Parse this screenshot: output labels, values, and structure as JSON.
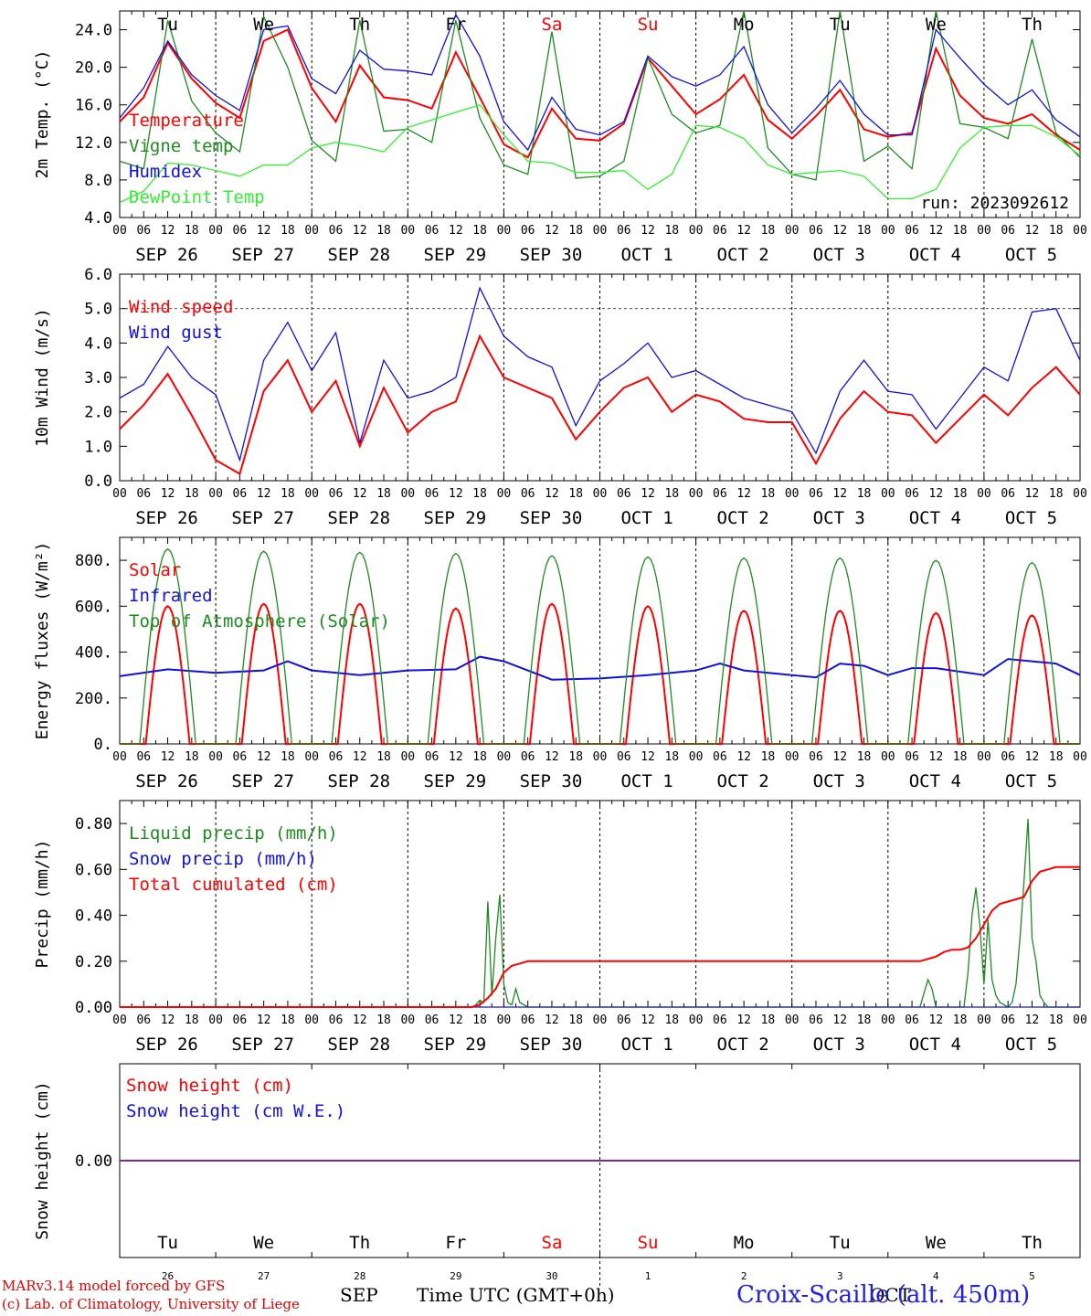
{
  "chart_data": [
    {
      "type": "line",
      "ylabel": "2m Temp. (°C)",
      "ylim": [
        4,
        26
      ],
      "yticks": [
        "4.0",
        "8.0",
        "12.0",
        "16.0",
        "20.0",
        "24.0"
      ],
      "run_label": "run: 2023092612",
      "day_names": [
        "Tu",
        "We",
        "Th",
        "Fr",
        "Sa",
        "Su",
        "Mo",
        "Tu",
        "We",
        "Th"
      ],
      "series": [
        {
          "name": "Temperature",
          "color": "#ff0000",
          "hours": [
            0,
            6,
            12,
            18,
            24,
            30,
            36,
            42,
            48,
            54,
            60,
            66,
            72,
            78,
            84,
            90,
            96,
            102,
            108,
            114,
            120,
            126,
            132,
            138,
            144,
            150,
            156,
            162,
            168,
            174,
            180,
            186,
            192,
            198,
            204,
            210,
            216,
            222,
            228,
            234,
            240
          ],
          "values": [
            14.2,
            16.8,
            22.6,
            18.8,
            16.2,
            14.6,
            22.8,
            24.0,
            17.8,
            14.2,
            20.2,
            16.8,
            16.5,
            15.6,
            21.6,
            16.8,
            11.8,
            10.4,
            15.6,
            12.4,
            12.2,
            14.0,
            21.0,
            18.0,
            15.0,
            16.6,
            19.2,
            14.4,
            12.4,
            14.8,
            17.6,
            13.4,
            12.6,
            13.0,
            22.0,
            17.0,
            14.6,
            14.0,
            15.0,
            12.8,
            11.2
          ]
        },
        {
          "name": "Vigne temp",
          "color": "#1e8a1e",
          "hours": [
            0,
            6,
            12,
            18,
            24,
            30,
            36,
            42,
            48,
            54,
            60,
            66,
            72,
            78,
            84,
            90,
            96,
            102,
            108,
            114,
            120,
            126,
            132,
            138,
            144,
            150,
            156,
            162,
            168,
            174,
            180,
            186,
            192,
            198,
            204,
            210,
            216,
            222,
            228,
            234,
            240
          ],
          "values": [
            10.0,
            9.2,
            25.0,
            16.4,
            13.0,
            11.0,
            25.4,
            20.0,
            12.2,
            10.0,
            25.0,
            13.2,
            13.4,
            12.0,
            25.0,
            14.6,
            9.6,
            8.6,
            23.8,
            8.2,
            8.4,
            10.0,
            21.0,
            15.0,
            13.0,
            13.8,
            26.0,
            11.4,
            8.6,
            8.0,
            26.0,
            10.0,
            11.6,
            9.2,
            26.0,
            14.0,
            13.6,
            12.4,
            23.0,
            13.0,
            10.4
          ]
        },
        {
          "name": "Humidex",
          "color": "#1010e0",
          "hours": [
            0,
            6,
            12,
            18,
            24,
            30,
            36,
            42,
            48,
            54,
            60,
            66,
            72,
            78,
            84,
            90,
            96,
            102,
            108,
            114,
            120,
            126,
            132,
            138,
            144,
            150,
            156,
            162,
            168,
            174,
            180,
            186,
            192,
            198,
            204,
            210,
            216,
            222,
            228,
            234,
            240
          ],
          "values": [
            14.6,
            17.8,
            22.8,
            19.2,
            17.0,
            15.4,
            24.0,
            24.4,
            18.8,
            17.2,
            21.8,
            19.8,
            19.6,
            19.2,
            25.6,
            21.2,
            14.2,
            11.2,
            16.8,
            13.4,
            12.8,
            14.2,
            21.2,
            19.0,
            18.0,
            19.2,
            22.2,
            16.0,
            13.0,
            15.6,
            18.6,
            15.0,
            12.8,
            12.8,
            24.0,
            21.0,
            18.2,
            16.0,
            17.6,
            14.4,
            12.6
          ]
        },
        {
          "name": "DewPoint Temp",
          "color": "#33ee33",
          "hours": [
            0,
            6,
            12,
            18,
            24,
            30,
            36,
            42,
            48,
            54,
            60,
            66,
            72,
            78,
            84,
            90,
            96,
            102,
            108,
            114,
            120,
            126,
            132,
            138,
            144,
            150,
            156,
            162,
            168,
            174,
            180,
            186,
            192,
            198,
            204,
            210,
            216,
            222,
            228,
            234,
            240
          ],
          "values": [
            5.6,
            6.8,
            9.8,
            9.6,
            9.0,
            8.4,
            9.6,
            9.6,
            11.4,
            12.0,
            11.6,
            11.0,
            13.6,
            14.4,
            15.2,
            16.0,
            12.8,
            10.0,
            9.8,
            8.8,
            8.8,
            9.0,
            7.0,
            8.6,
            13.8,
            13.6,
            12.4,
            9.6,
            8.6,
            8.8,
            9.0,
            8.4,
            6.0,
            6.0,
            7.0,
            11.4,
            13.6,
            13.8,
            13.8,
            12.6,
            10.6
          ]
        }
      ]
    },
    {
      "type": "line",
      "ylabel": "10m Wind (m/s)",
      "ylim": [
        0,
        6
      ],
      "yticks": [
        "0.0",
        "1.0",
        "2.0",
        "3.0",
        "4.0",
        "5.0",
        "6.0"
      ],
      "series": [
        {
          "name": "Wind speed",
          "color": "#ff0000",
          "hours": [
            0,
            6,
            12,
            18,
            24,
            30,
            36,
            42,
            48,
            54,
            60,
            66,
            72,
            78,
            84,
            90,
            96,
            102,
            108,
            114,
            120,
            126,
            132,
            138,
            144,
            150,
            156,
            162,
            168,
            174,
            180,
            186,
            192,
            198,
            204,
            210,
            216,
            222,
            228,
            234,
            240
          ],
          "values": [
            1.5,
            2.2,
            3.1,
            1.9,
            0.6,
            0.2,
            2.6,
            3.5,
            2.0,
            2.9,
            1.0,
            2.7,
            1.4,
            2.0,
            2.3,
            4.2,
            3.0,
            2.7,
            2.4,
            1.2,
            2.0,
            2.7,
            3.0,
            2.0,
            2.5,
            2.3,
            1.8,
            1.7,
            1.7,
            0.5,
            1.8,
            2.6,
            2.0,
            1.9,
            1.1,
            1.8,
            2.5,
            1.9,
            2.7,
            3.3,
            2.5
          ]
        },
        {
          "name": "Wind gust",
          "color": "#1010e0",
          "hours": [
            0,
            6,
            12,
            18,
            24,
            30,
            36,
            42,
            48,
            54,
            60,
            66,
            72,
            78,
            84,
            90,
            96,
            102,
            108,
            114,
            120,
            126,
            132,
            138,
            144,
            150,
            156,
            162,
            168,
            174,
            180,
            186,
            192,
            198,
            204,
            210,
            216,
            222,
            228,
            234,
            240
          ],
          "values": [
            2.4,
            2.8,
            3.9,
            3.0,
            2.5,
            0.6,
            3.5,
            4.6,
            3.2,
            4.3,
            1.1,
            3.5,
            2.4,
            2.6,
            3.0,
            5.6,
            4.2,
            3.6,
            3.3,
            1.6,
            2.9,
            3.4,
            4.0,
            3.0,
            3.2,
            2.8,
            2.4,
            2.2,
            2.0,
            0.8,
            2.6,
            3.5,
            2.6,
            2.5,
            1.5,
            2.4,
            3.3,
            2.9,
            4.9,
            5.0,
            3.5
          ]
        }
      ]
    },
    {
      "type": "line",
      "ylabel": "Energy fluxes (W/m²)",
      "ylim": [
        0,
        900
      ],
      "yticks": [
        "0.",
        "200.",
        "400.",
        "600.",
        "800."
      ],
      "series": [
        {
          "name": "Solar",
          "color": "#ff0000",
          "peaks": [
            600,
            610,
            610,
            590,
            610,
            600,
            580,
            580,
            570,
            560
          ]
        },
        {
          "name": "Infrared",
          "color": "#1010e0",
          "hours": [
            0,
            12,
            24,
            36,
            42,
            48,
            60,
            72,
            84,
            90,
            96,
            108,
            120,
            132,
            144,
            150,
            156,
            168,
            174,
            180,
            186,
            192,
            198,
            204,
            216,
            222,
            234,
            240
          ],
          "values": [
            295,
            325,
            310,
            320,
            360,
            320,
            300,
            320,
            325,
            380,
            360,
            280,
            285,
            300,
            320,
            350,
            320,
            300,
            290,
            350,
            340,
            300,
            330,
            330,
            300,
            370,
            350,
            300
          ]
        },
        {
          "name": "Top of Atmosphere (Solar)",
          "color": "#1e8a1e",
          "peaks": [
            850,
            840,
            835,
            830,
            820,
            815,
            810,
            810,
            800,
            790
          ]
        }
      ]
    },
    {
      "type": "line",
      "ylabel": "Precip (mm/h)",
      "ylim": [
        0,
        0.9
      ],
      "yticks": [
        "0.00",
        "0.20",
        "0.40",
        "0.60",
        "0.80"
      ],
      "series": [
        {
          "name": "Liquid precip (mm/h)",
          "color": "#1e8a1e",
          "hours": [
            0,
            88,
            89,
            90,
            91,
            92,
            93,
            94,
            95,
            96,
            97,
            98,
            99,
            100,
            101,
            102,
            103,
            200,
            201,
            202,
            203,
            204,
            205,
            211,
            212,
            213,
            214,
            215,
            216,
            217,
            218,
            219,
            220,
            221,
            222,
            223,
            224,
            225,
            226,
            227,
            228,
            229,
            230,
            231,
            232,
            233,
            234,
            235,
            236,
            240
          ],
          "values": [
            0,
            0,
            0.01,
            0.03,
            0.02,
            0.46,
            0.05,
            0.3,
            0.49,
            0.1,
            0.02,
            0.01,
            0.08,
            0.02,
            0.01,
            0,
            0,
            0,
            0.06,
            0.12,
            0.08,
            0,
            0,
            0,
            0.15,
            0.4,
            0.52,
            0.35,
            0.1,
            0.38,
            0.12,
            0.05,
            0.02,
            0.01,
            0,
            0.02,
            0.1,
            0.3,
            0.55,
            0.82,
            0.3,
            0.2,
            0.05,
            0.02,
            0,
            0,
            0,
            0,
            0,
            0
          ]
        },
        {
          "name": "Snow precip (mm/h)",
          "color": "#1010e0",
          "hours": [
            0,
            240
          ],
          "values": [
            0,
            0
          ]
        },
        {
          "name": "Total cumulated (cm)",
          "color": "#ff0000",
          "hours": [
            0,
            88,
            90,
            92,
            94,
            96,
            98,
            100,
            102,
            104,
            200,
            202,
            204,
            206,
            208,
            210,
            212,
            214,
            216,
            218,
            220,
            222,
            224,
            226,
            228,
            230,
            232,
            234,
            236,
            240
          ],
          "values": [
            0,
            0,
            0.01,
            0.04,
            0.08,
            0.15,
            0.18,
            0.19,
            0.2,
            0.2,
            0.2,
            0.21,
            0.22,
            0.24,
            0.25,
            0.25,
            0.26,
            0.3,
            0.36,
            0.42,
            0.45,
            0.46,
            0.47,
            0.48,
            0.55,
            0.59,
            0.6,
            0.61,
            0.61,
            0.61
          ]
        }
      ]
    },
    {
      "type": "line",
      "ylabel": "Snow height (cm)",
      "yticks": [
        "0.00"
      ],
      "series": [
        {
          "name": "Snow height (cm)",
          "color": "#ff0000",
          "hours": [
            0,
            240
          ],
          "values": [
            0,
            0
          ]
        },
        {
          "name": "Snow height (cm W.E.)",
          "color": "#1010e0",
          "hours": [
            0,
            240
          ],
          "values": [
            0,
            0
          ]
        }
      ]
    }
  ],
  "hour_ticks": [
    "00",
    "06",
    "12",
    "18"
  ],
  "date_labels": [
    "SEP 26",
    "SEP 27",
    "SEP 28",
    "SEP 29",
    "SEP 30",
    "OCT  1",
    "OCT  2",
    "OCT  3",
    "OCT  4",
    "OCT  5"
  ],
  "bottom_day_names": [
    "Tu",
    "We",
    "Th",
    "Fr",
    "Sa",
    "Su",
    "Mo",
    "Tu",
    "We",
    "Th"
  ],
  "bottom_day_numbers": [
    "26",
    "27",
    "28",
    "29",
    "30",
    "1",
    "2",
    "3",
    "4",
    "5"
  ],
  "weekend_color": "#ff0000",
  "month_left": "SEP",
  "month_right": "OCT",
  "x_title": "Time UTC (GMT+0h)",
  "credit_line1": "MARv3.14 model forced by GFS",
  "credit_line2": "(c) Lab. of Climatology, University of Liege",
  "station": "Croix-Scaille (alt. 450m)"
}
